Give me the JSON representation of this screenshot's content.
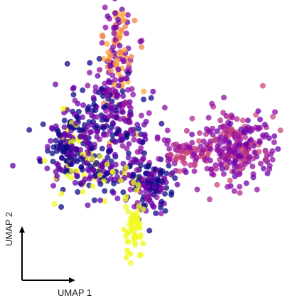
{
  "chart_data": {
    "type": "scatter",
    "xlabel": "UMAP 1",
    "ylabel": "UMAP 2",
    "axes_style": "corner-arrows",
    "grid": false,
    "legend": "none",
    "xlim": [
      0,
      10
    ],
    "ylim": [
      0,
      10
    ],
    "colormap": [
      "#0d0887",
      "#6a00a8",
      "#8f0da4",
      "#b12a90",
      "#cc4778",
      "#e16462",
      "#f2844b",
      "#fca636",
      "#f0f921"
    ],
    "clusters": [
      {
        "name": "top-arm",
        "cx": 3.5,
        "cy": 8.9,
        "sx": 0.35,
        "sy": 1.5,
        "n": 140,
        "colors": [
          1,
          2,
          6,
          7
        ]
      },
      {
        "name": "upper-left-path",
        "cx": 2.8,
        "cy": 6.5,
        "sx": 0.5,
        "sy": 0.9,
        "n": 110,
        "colors": [
          0,
          0,
          1,
          2
        ]
      },
      {
        "name": "left-lobe",
        "cx": 1.6,
        "cy": 5.0,
        "sx": 0.55,
        "sy": 0.75,
        "n": 200,
        "colors": [
          0,
          0,
          1,
          1,
          8
        ]
      },
      {
        "name": "center",
        "cx": 3.8,
        "cy": 5.6,
        "sx": 0.6,
        "sy": 0.9,
        "n": 90,
        "colors": [
          0,
          1,
          2
        ]
      },
      {
        "name": "bottom-left-loop",
        "cx": 3.0,
        "cy": 4.0,
        "sx": 0.6,
        "sy": 0.35,
        "n": 70,
        "colors": [
          0,
          1,
          8
        ]
      },
      {
        "name": "lower-center",
        "cx": 4.8,
        "cy": 3.6,
        "sx": 0.45,
        "sy": 0.55,
        "n": 130,
        "colors": [
          0,
          0,
          1,
          2
        ]
      },
      {
        "name": "yellow-tail",
        "cx": 4.1,
        "cy": 2.0,
        "sx": 0.18,
        "sy": 0.65,
        "n": 60,
        "colors": [
          8
        ]
      },
      {
        "name": "bridge",
        "cx": 6.2,
        "cy": 4.8,
        "sx": 0.55,
        "sy": 0.25,
        "n": 60,
        "colors": [
          2,
          3,
          4
        ]
      },
      {
        "name": "right-lobe",
        "cx": 8.1,
        "cy": 5.1,
        "sx": 0.8,
        "sy": 0.7,
        "n": 260,
        "colors": [
          1,
          2,
          3,
          4,
          2
        ]
      }
    ]
  }
}
